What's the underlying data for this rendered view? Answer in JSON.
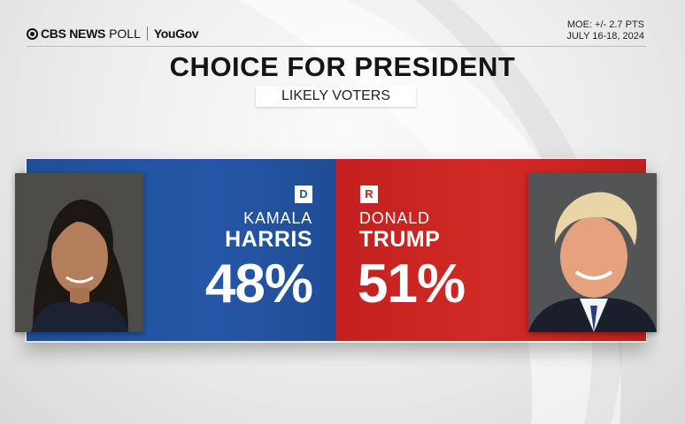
{
  "header": {
    "brand": "CBS NEWS",
    "poll": "POLL",
    "partner": "YouGov",
    "moe": "MOE: +/- 2.7 PTS",
    "dates": "JULY 16-18, 2024"
  },
  "title": "CHOICE FOR PRESIDENT",
  "subtitle": "LIKELY VOTERS",
  "candidates": [
    {
      "party": "D",
      "first_name": "KAMALA",
      "last_name": "HARRIS",
      "percent": "48%",
      "color": "#2557a8"
    },
    {
      "party": "R",
      "first_name": "DONALD",
      "last_name": "TRUMP",
      "percent": "51%",
      "color": "#d12a26"
    }
  ]
}
